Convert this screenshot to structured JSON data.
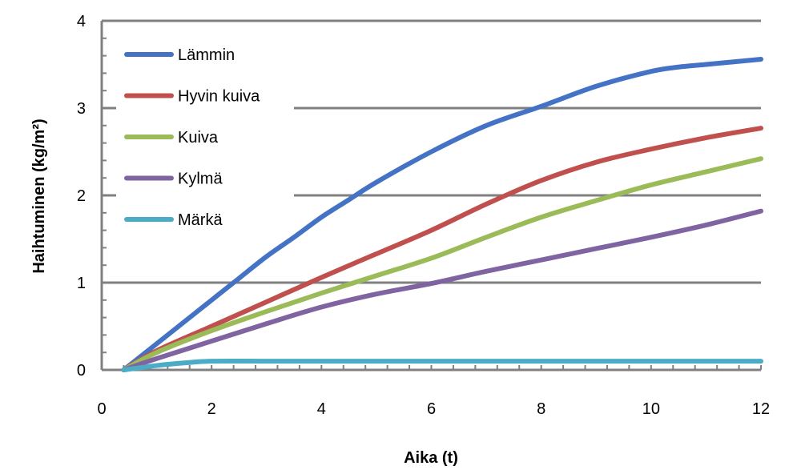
{
  "chart_data": {
    "type": "line",
    "xlabel": "Aika (t)",
    "ylabel": "Haihtuminen (kg/m²)",
    "xlim": [
      0,
      12
    ],
    "ylim": [
      0,
      4
    ],
    "xticks": [
      0,
      2,
      4,
      6,
      8,
      10,
      12
    ],
    "yticks": [
      0,
      1,
      2,
      3,
      4
    ],
    "grid": "horizontal",
    "legend_position": "top-left",
    "series": [
      {
        "name": "Lämmin",
        "color": "#4472C4",
        "x": [
          0.4,
          1,
          1.5,
          2,
          2.5,
          3,
          3.5,
          4,
          4.5,
          5,
          6,
          7,
          8,
          9,
          10,
          10.5,
          11,
          12
        ],
        "y": [
          0,
          0.3,
          0.55,
          0.8,
          1.05,
          1.3,
          1.52,
          1.75,
          1.95,
          2.15,
          2.5,
          2.8,
          3.02,
          3.25,
          3.42,
          3.47,
          3.5,
          3.56
        ]
      },
      {
        "name": "Hyvin kuiva",
        "color": "#C0504D",
        "x": [
          0.4,
          1,
          2,
          3,
          4,
          5,
          6,
          7,
          8,
          9,
          10,
          11,
          12
        ],
        "y": [
          0,
          0.22,
          0.5,
          0.78,
          1.06,
          1.33,
          1.6,
          1.9,
          2.17,
          2.38,
          2.53,
          2.66,
          2.77
        ]
      },
      {
        "name": "Kuiva",
        "color": "#9BBB59",
        "x": [
          0.4,
          1,
          2,
          3,
          4,
          5,
          6,
          7,
          8,
          9,
          10,
          11,
          12
        ],
        "y": [
          0,
          0.2,
          0.45,
          0.67,
          0.88,
          1.08,
          1.28,
          1.52,
          1.75,
          1.94,
          2.12,
          2.27,
          2.42
        ]
      },
      {
        "name": "Kylmä",
        "color": "#8064A2",
        "x": [
          0.4,
          1,
          2,
          3,
          4,
          5,
          6,
          7,
          8,
          9,
          10,
          11,
          12
        ],
        "y": [
          0,
          0.13,
          0.33,
          0.53,
          0.72,
          0.87,
          0.99,
          1.13,
          1.26,
          1.39,
          1.52,
          1.66,
          1.82
        ]
      },
      {
        "name": "Märkä",
        "color": "#4BACC6",
        "x": [
          0.4,
          1,
          1.5,
          2,
          3,
          4,
          6,
          8,
          10,
          12
        ],
        "y": [
          0,
          0.05,
          0.08,
          0.1,
          0.1,
          0.1,
          0.1,
          0.1,
          0.1,
          0.1
        ]
      }
    ]
  }
}
